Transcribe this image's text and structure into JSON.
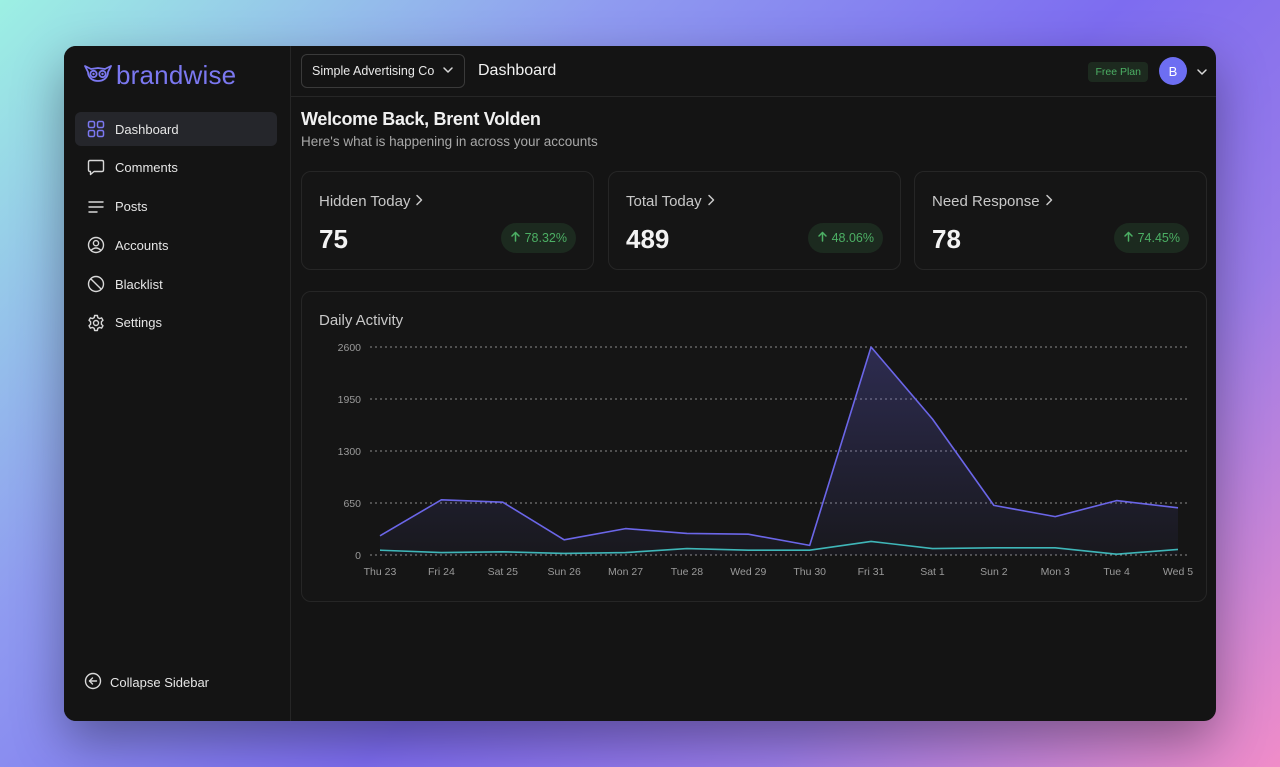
{
  "brand": {
    "name": "brandwise"
  },
  "sidebar": {
    "items": [
      {
        "label": "Dashboard",
        "icon": "grid-icon",
        "active": true
      },
      {
        "label": "Comments",
        "icon": "comment-icon",
        "active": false
      },
      {
        "label": "Posts",
        "icon": "lines-icon",
        "active": false
      },
      {
        "label": "Accounts",
        "icon": "user-circle-icon",
        "active": false
      },
      {
        "label": "Blacklist",
        "icon": "ban-icon",
        "active": false
      },
      {
        "label": "Settings",
        "icon": "gear-icon",
        "active": false
      }
    ],
    "collapse_label": "Collapse Sidebar"
  },
  "topbar": {
    "org_select": "Simple Advertising Co",
    "page_title": "Dashboard",
    "plan": "Free Plan",
    "avatar_initial": "B"
  },
  "welcome": {
    "title": "Welcome Back, Brent Volden",
    "subtitle": "Here's what is happening in across your accounts"
  },
  "stats": [
    {
      "title": "Hidden Today",
      "value": "75",
      "change": "78.32%"
    },
    {
      "title": "Total Today",
      "value": "489",
      "change": "48.06%"
    },
    {
      "title": "Need Response",
      "value": "78",
      "change": "74.45%"
    }
  ],
  "colors": {
    "accent": "#6d6ef2",
    "series_primary": "#6b66e8",
    "series_secondary": "#3fb6b8",
    "positive": "#4caf64"
  },
  "chart_data": {
    "type": "line",
    "title": "Daily Activity",
    "categories": [
      "Thu 23",
      "Fri 24",
      "Sat 25",
      "Sun 26",
      "Mon 27",
      "Tue 28",
      "Wed 29",
      "Thu 30",
      "Fri 31",
      "Sat 1",
      "Sun 2",
      "Mon 3",
      "Tue 4",
      "Wed 5"
    ],
    "yticks": [
      0,
      650,
      1300,
      1950,
      2600
    ],
    "ylim": [
      0,
      2600
    ],
    "grid": true,
    "series": [
      {
        "values": [
          240,
          690,
          660,
          190,
          330,
          270,
          260,
          120,
          2600,
          1700,
          620,
          480,
          680,
          590
        ],
        "area": true
      },
      {
        "values": [
          60,
          30,
          40,
          20,
          30,
          80,
          60,
          60,
          170,
          80,
          90,
          90,
          10,
          70
        ],
        "area": false
      }
    ]
  }
}
